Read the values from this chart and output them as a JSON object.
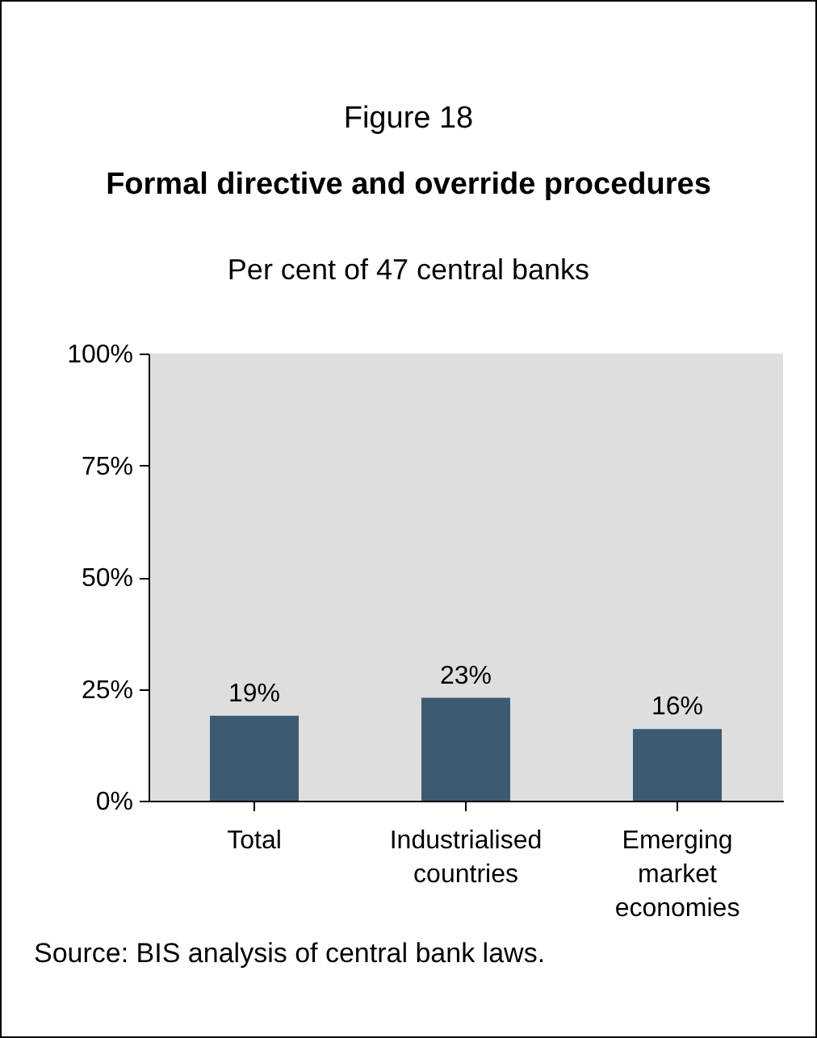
{
  "chart_data": {
    "type": "bar",
    "title": "Formal directive and override procedures",
    "subtitle": "Per cent of 47 central banks",
    "annotations": [
      "Figure 18",
      "Source: BIS analysis of central bank laws."
    ],
    "categories": [
      "Total",
      "Industrialised countries",
      "Emerging market economies"
    ],
    "values": [
      19,
      23,
      16
    ],
    "value_labels": [
      "19%",
      "23%",
      "16%"
    ],
    "color": "#3d5a73",
    "ylim": [
      0,
      100
    ],
    "yticks": [
      {
        "value": 0,
        "label": "0%"
      },
      {
        "value": 25,
        "label": "25%"
      },
      {
        "value": 50,
        "label": "50%"
      },
      {
        "value": 75,
        "label": "75%"
      },
      {
        "value": 100,
        "label": "100%"
      }
    ],
    "grid": false
  }
}
